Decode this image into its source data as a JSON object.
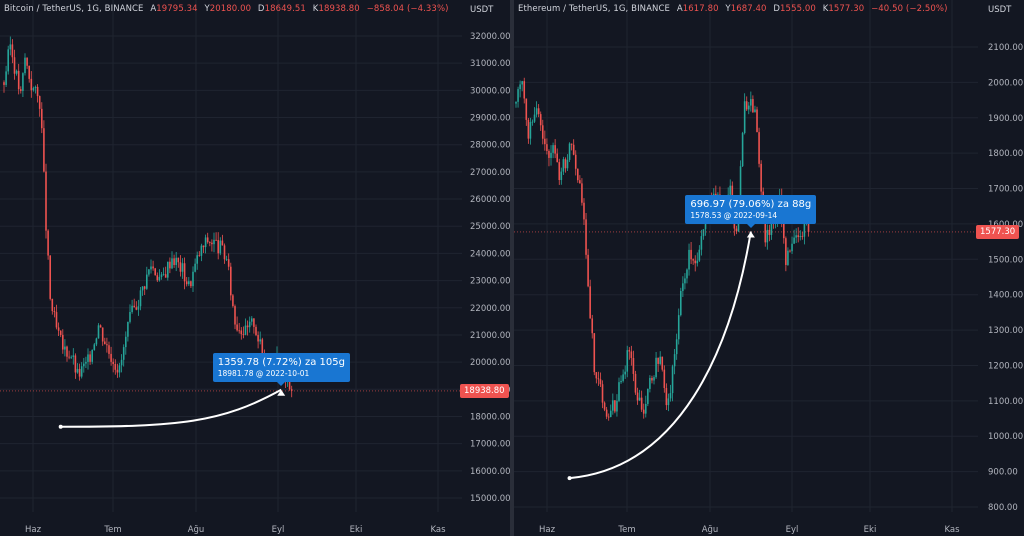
{
  "colors": {
    "up": "#26a69a",
    "down": "#ef5350",
    "grid": "#1f2430",
    "text": "#d1d4dc",
    "axis_text": "#b2b5be",
    "tooltip": "#1976d2",
    "arrow": "#ffffff"
  },
  "chart_data": [
    {
      "type": "candlestick",
      "header": {
        "symbol": "Bitcoin / TetherUS, 1G, BINANCE",
        "o_label": "A",
        "o": "19795.34",
        "h_label": "Y",
        "h": "20180.00",
        "l_label": "D",
        "l": "18649.51",
        "c_label": "K",
        "c": "18938.80",
        "change": "−858.04 (−4.33%)"
      },
      "unit": "USDT",
      "y_ticks": [
        "32000.00",
        "31000.00",
        "30000.00",
        "29000.00",
        "28000.00",
        "27000.00",
        "26000.00",
        "25000.00",
        "24000.00",
        "23000.00",
        "22000.00",
        "21000.00",
        "20000.00",
        "19000.00",
        "18000.00",
        "17000.00",
        "16000.00",
        "15000.00"
      ],
      "ylim": [
        14700,
        32500
      ],
      "x_ticks": [
        "Haz",
        "Tem",
        "Ağu",
        "Eyl",
        "Eki",
        "Kas"
      ],
      "last_price": "18938.80",
      "last_price_value": 18938.8,
      "waypoints": [
        [
          0,
          30300
        ],
        [
          3,
          31700
        ],
        [
          6,
          30500
        ],
        [
          8,
          29800
        ],
        [
          10,
          31200
        ],
        [
          13,
          30200
        ],
        [
          17,
          29600
        ],
        [
          18,
          28500
        ],
        [
          20,
          25000
        ],
        [
          22,
          22300
        ],
        [
          25,
          21200
        ],
        [
          28,
          20500
        ],
        [
          32,
          20300
        ],
        [
          35,
          19500
        ],
        [
          40,
          20000
        ],
        [
          45,
          21400
        ],
        [
          50,
          20400
        ],
        [
          55,
          19700
        ],
        [
          60,
          21600
        ],
        [
          65,
          22500
        ],
        [
          70,
          23600
        ],
        [
          75,
          23000
        ],
        [
          80,
          23900
        ],
        [
          85,
          23400
        ],
        [
          88,
          22800
        ],
        [
          93,
          24000
        ],
        [
          97,
          24500
        ],
        [
          100,
          24400
        ],
        [
          103,
          24200
        ],
        [
          106,
          23800
        ],
        [
          110,
          21500
        ],
        [
          115,
          21100
        ],
        [
          119,
          21500
        ],
        [
          123,
          20300
        ],
        [
          126,
          19800
        ],
        [
          130,
          20100
        ],
        [
          134,
          19500
        ],
        [
          137,
          18950
        ]
      ],
      "measure": {
        "label": "1359.78 (7.72%) za 105g",
        "sub": "18981.78 @ 2022-10-01",
        "start_bar": 27,
        "start_price": 17622,
        "end_bar": 132,
        "end_price": 18981.78
      }
    },
    {
      "type": "candlestick",
      "header": {
        "symbol": "Ethereum / TetherUS, 1G, BINANCE",
        "o_label": "A",
        "o": "1617.80",
        "h_label": "Y",
        "h": "1687.40",
        "l_label": "D",
        "l": "1555.00",
        "c_label": "K",
        "c": "1577.30",
        "change": "−40.50 (−2.50%)"
      },
      "unit": "USDT",
      "y_ticks": [
        "2100.00",
        "2000.00",
        "1900.00",
        "1800.00",
        "1700.00",
        "1600.00",
        "1500.00",
        "1400.00",
        "1300.00",
        "1200.00",
        "1100.00",
        "1000.00",
        "900.00",
        "800.00"
      ],
      "ylim": [
        770,
        2150
      ],
      "x_ticks": [
        "Haz",
        "Tem",
        "Ağu",
        "Eyl",
        "Eki",
        "Kas"
      ],
      "last_price": "1577.30",
      "last_price_value": 1577.3,
      "waypoints": [
        [
          0,
          1940
        ],
        [
          3,
          2010
        ],
        [
          6,
          1860
        ],
        [
          9,
          1930
        ],
        [
          12,
          1880
        ],
        [
          15,
          1800
        ],
        [
          18,
          1810
        ],
        [
          21,
          1740
        ],
        [
          24,
          1780
        ],
        [
          27,
          1820
        ],
        [
          30,
          1740
        ],
        [
          32,
          1680
        ],
        [
          35,
          1420
        ],
        [
          38,
          1200
        ],
        [
          42,
          1110
        ],
        [
          45,
          1060
        ],
        [
          48,
          1090
        ],
        [
          52,
          1180
        ],
        [
          55,
          1250
        ],
        [
          58,
          1140
        ],
        [
          62,
          1070
        ],
        [
          66,
          1170
        ],
        [
          70,
          1230
        ],
        [
          73,
          1070
        ],
        [
          76,
          1180
        ],
        [
          80,
          1390
        ],
        [
          84,
          1520
        ],
        [
          88,
          1490
        ],
        [
          92,
          1600
        ],
        [
          96,
          1700
        ],
        [
          100,
          1640
        ],
        [
          104,
          1690
        ],
        [
          107,
          1560
        ],
        [
          111,
          1930
        ],
        [
          114,
          1960
        ],
        [
          117,
          1880
        ],
        [
          119,
          1700
        ],
        [
          121,
          1560
        ],
        [
          125,
          1610
        ],
        [
          128,
          1680
        ],
        [
          131,
          1490
        ],
        [
          135,
          1580
        ],
        [
          138,
          1570
        ],
        [
          142,
          1617
        ]
      ],
      "measure": {
        "label": "696.97 (79.06%) za 88g",
        "sub": "1578.53 @ 2022-09-14",
        "start_bar": 26,
        "start_price": 881.56,
        "end_bar": 114,
        "end_price": 1578.53
      }
    }
  ]
}
